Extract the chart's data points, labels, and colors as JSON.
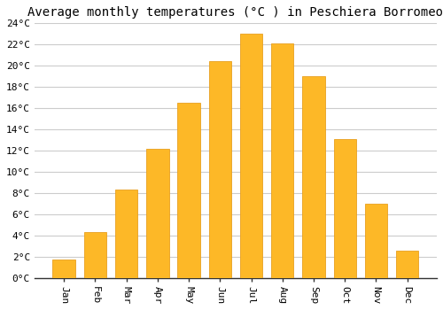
{
  "title": "Average monthly temperatures (°C ) in Peschiera Borromeo",
  "months": [
    "Jan",
    "Feb",
    "Mar",
    "Apr",
    "May",
    "Jun",
    "Jul",
    "Aug",
    "Sep",
    "Oct",
    "Nov",
    "Dec"
  ],
  "values": [
    1.7,
    4.3,
    8.3,
    12.2,
    16.5,
    20.4,
    23.0,
    22.1,
    19.0,
    13.1,
    7.0,
    2.6
  ],
  "bar_color": "#FDB827",
  "bar_edge_color": "#E8A020",
  "background_color": "#FFFFFF",
  "grid_color": "#CCCCCC",
  "ylim": [
    0,
    24
  ],
  "yticks": [
    0,
    2,
    4,
    6,
    8,
    10,
    12,
    14,
    16,
    18,
    20,
    22,
    24
  ],
  "title_fontsize": 10,
  "tick_fontsize": 8,
  "font_family": "monospace"
}
